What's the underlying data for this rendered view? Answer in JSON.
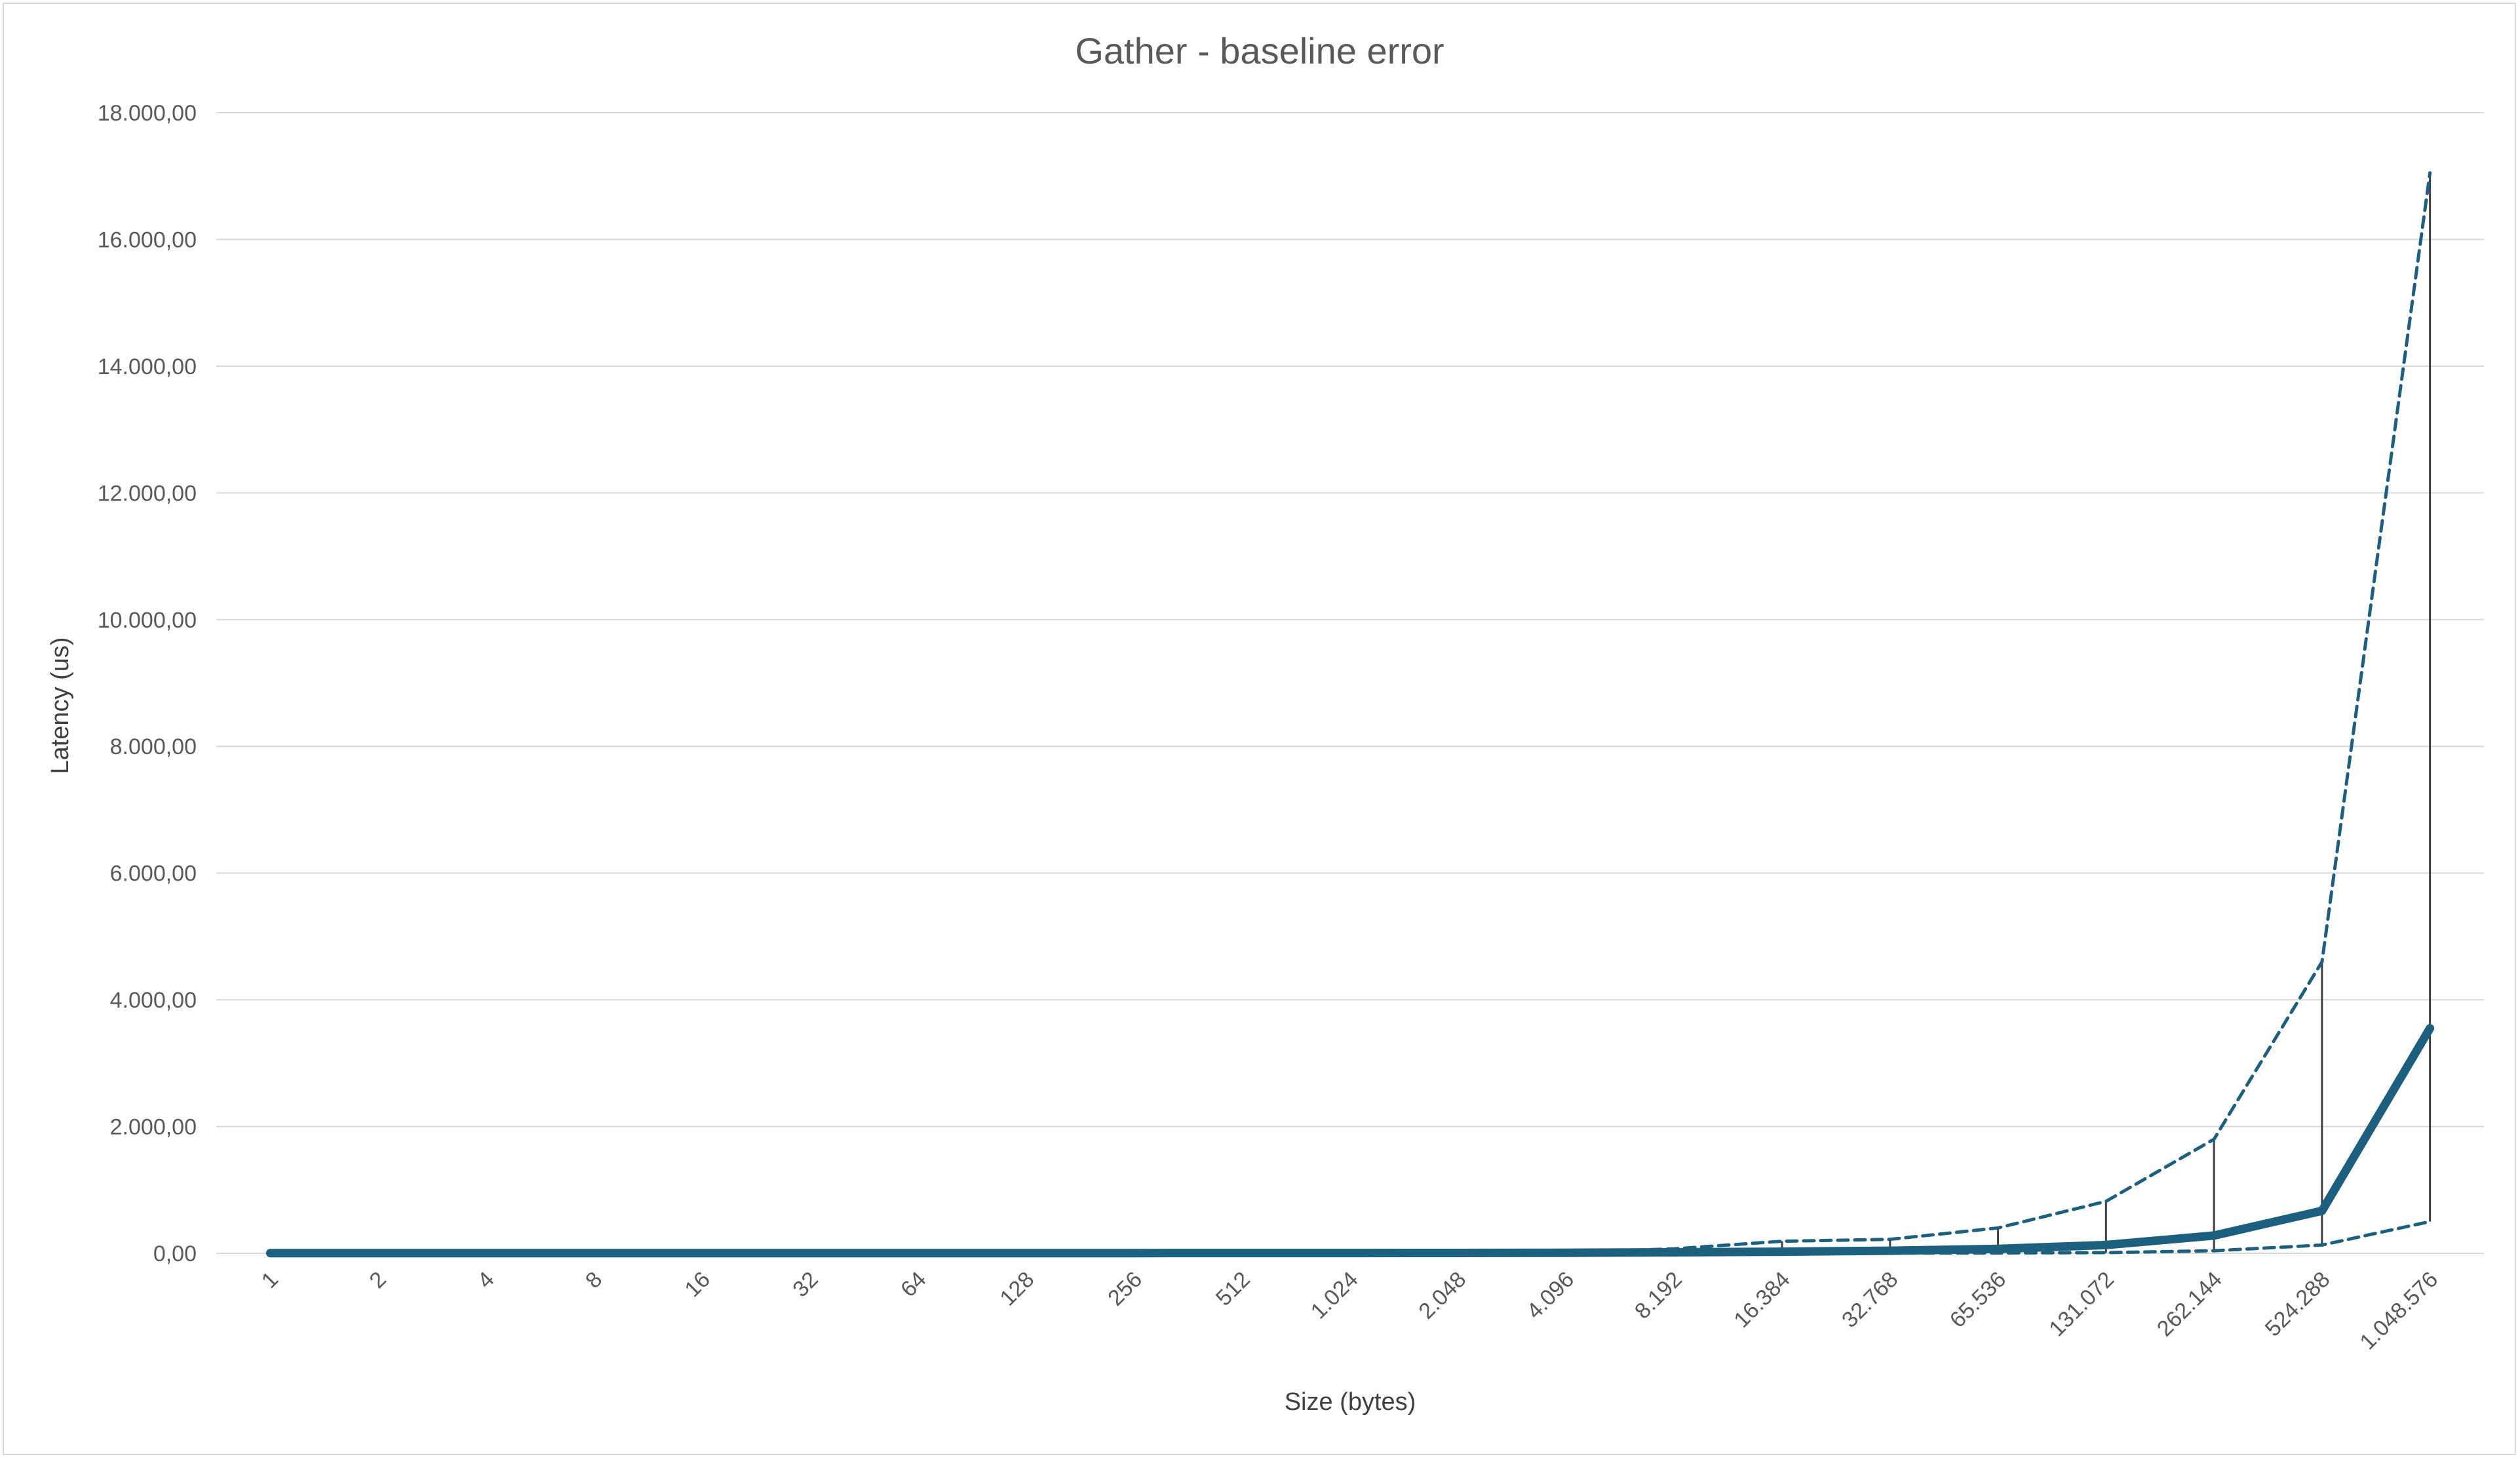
{
  "chart_data": {
    "type": "line",
    "title": "Gather - baseline error",
    "xlabel": "Size (bytes)",
    "ylabel": "Latency (us)",
    "ylim": [
      0,
      18000
    ],
    "y_ticks": [
      0,
      2000,
      4000,
      6000,
      8000,
      10000,
      12000,
      14000,
      16000,
      18000
    ],
    "y_tick_labels": [
      "0,00",
      "2.000,00",
      "4.000,00",
      "6.000,00",
      "8.000,00",
      "10.000,00",
      "12.000,00",
      "14.000,00",
      "16.000,00",
      "18.000,00"
    ],
    "categories": [
      "1",
      "2",
      "4",
      "8",
      "16",
      "32",
      "64",
      "128",
      "256",
      "512",
      "1.024",
      "2.048",
      "4.096",
      "8.192",
      "16.384",
      "32.768",
      "65.536",
      "131.072",
      "262.144",
      "524.288",
      "1.048.576"
    ],
    "grid": true,
    "legend": "none",
    "series": [
      {
        "role": "mean",
        "style": "solid",
        "color": "#1d5f7f",
        "values": [
          2,
          3,
          3,
          3,
          3,
          3,
          3,
          3,
          3,
          4,
          4,
          5,
          8,
          15,
          25,
          40,
          70,
          130,
          280,
          670,
          3550
        ]
      },
      {
        "role": "upper",
        "style": "dashed",
        "color": "#1d5f7f",
        "values": [
          2,
          3,
          3,
          3,
          3,
          3,
          3,
          3,
          3,
          4,
          4,
          6,
          15,
          70,
          190,
          220,
          400,
          820,
          1800,
          4600,
          17050
        ]
      },
      {
        "role": "lower",
        "style": "dashed",
        "color": "#1d5f7f",
        "values": [
          2,
          2,
          2,
          2,
          2,
          2,
          2,
          2,
          2,
          2,
          2,
          2,
          3,
          3,
          3,
          3,
          5,
          10,
          40,
          130,
          500
        ]
      }
    ],
    "error_bar_color": "#404040"
  }
}
